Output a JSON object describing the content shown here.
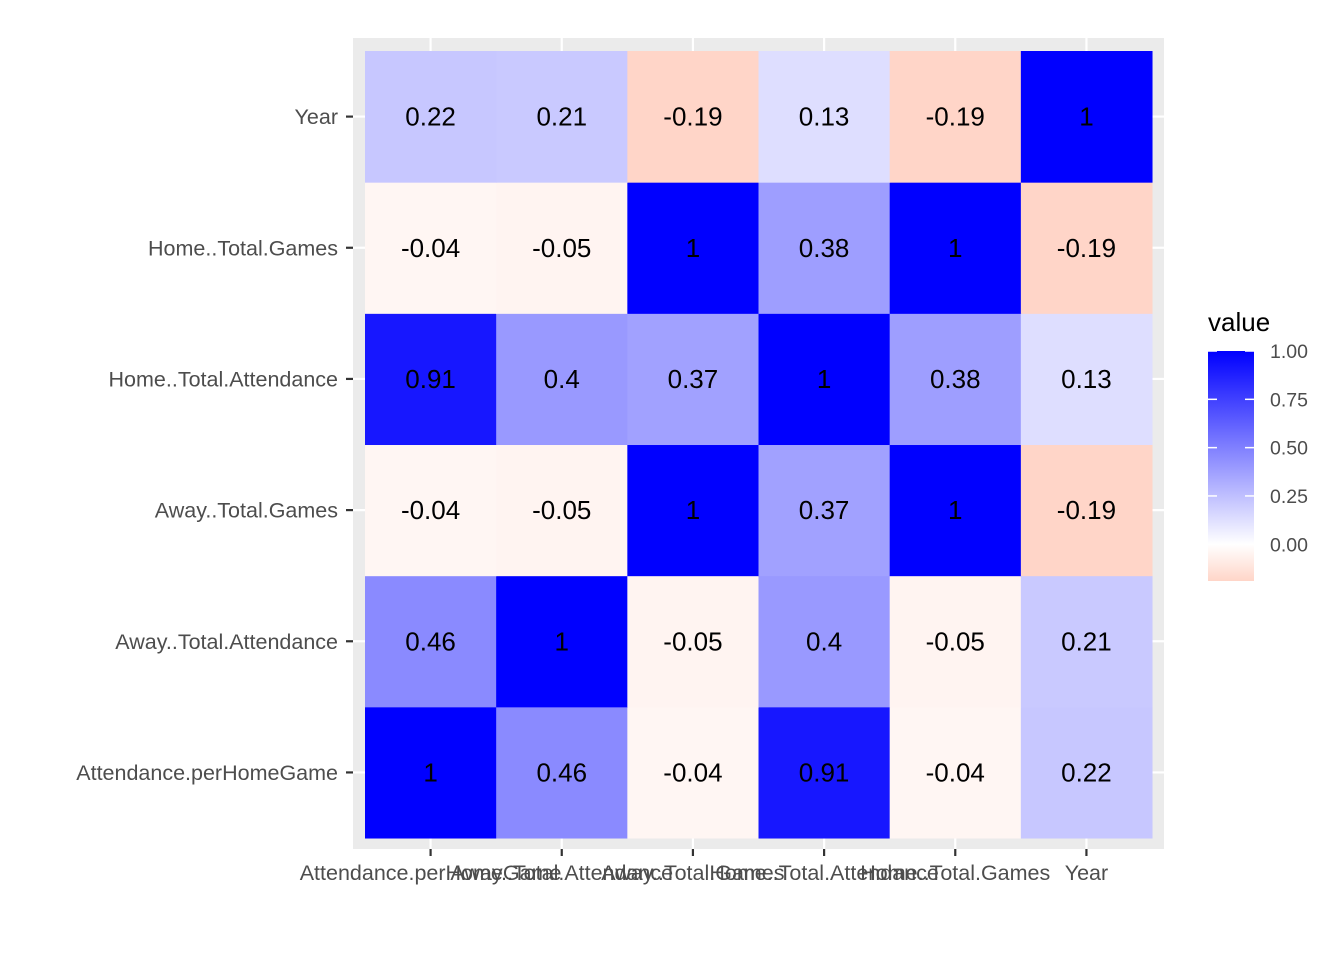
{
  "chart_data": {
    "type": "heatmap",
    "x_categories": [
      "Attendance.perHomeGame",
      "Away..Total.Attendance",
      "Away..Total.Games",
      "Home..Total.Attendance",
      "Home..Total.Games",
      "Year"
    ],
    "y_categories": [
      "Attendance.perHomeGame",
      "Away..Total.Attendance",
      "Away..Total.Games",
      "Home..Total.Attendance",
      "Home..Total.Games",
      "Year"
    ],
    "values": [
      [
        1,
        0.46,
        -0.04,
        0.91,
        -0.04,
        0.22
      ],
      [
        0.46,
        1,
        -0.05,
        0.4,
        -0.05,
        0.21
      ],
      [
        -0.04,
        -0.05,
        1,
        0.37,
        1,
        -0.19
      ],
      [
        0.91,
        0.4,
        0.37,
        1,
        0.38,
        0.13
      ],
      [
        -0.04,
        -0.05,
        1,
        0.38,
        1,
        -0.19
      ],
      [
        0.22,
        0.21,
        -0.19,
        0.13,
        -0.19,
        1
      ]
    ],
    "value_labels": [
      [
        "1",
        "0.46",
        "-0.04",
        "0.91",
        "-0.04",
        "0.22"
      ],
      [
        "0.46",
        "1",
        "-0.05",
        "0.4",
        "-0.05",
        "0.21"
      ],
      [
        "-0.04",
        "-0.05",
        "1",
        "0.37",
        "1",
        "-0.19"
      ],
      [
        "0.91",
        "0.4",
        "0.37",
        "1",
        "0.38",
        "0.13"
      ],
      [
        "-0.04",
        "-0.05",
        "1",
        "0.38",
        "1",
        "-0.19"
      ],
      [
        "0.22",
        "0.21",
        "-0.19",
        "0.13",
        "-0.19",
        "1"
      ]
    ],
    "xlabel": "",
    "ylabel": "",
    "legend": {
      "title": "value",
      "ticks": [
        0,
        0.25,
        0.5,
        0.75,
        1
      ],
      "tick_labels": [
        "0.00",
        "0.25",
        "0.50",
        "0.75",
        "1.00"
      ],
      "range": [
        -0.19,
        1
      ],
      "placement": "right"
    },
    "colors": {
      "low": "#FFD5C8",
      "mid": "#FFFFFF",
      "high": "#0000FF",
      "panel_background": "#EBEBEB",
      "grid": "#FFFFFF",
      "text": "#000000",
      "tick_text": "#4D4D4D"
    },
    "grid": true
  }
}
